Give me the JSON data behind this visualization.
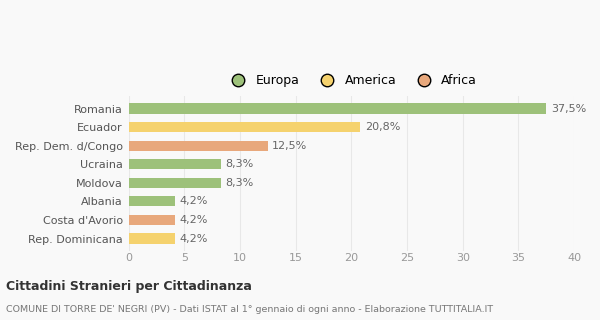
{
  "categories": [
    "Rep. Dominicana",
    "Costa d'Avorio",
    "Albania",
    "Moldova",
    "Ucraina",
    "Rep. Dem. d/Congo",
    "Ecuador",
    "Romania"
  ],
  "values": [
    4.2,
    4.2,
    4.2,
    8.3,
    8.3,
    12.5,
    20.8,
    37.5
  ],
  "labels": [
    "4,2%",
    "4,2%",
    "4,2%",
    "8,3%",
    "8,3%",
    "12,5%",
    "20,8%",
    "37,5%"
  ],
  "colors": [
    "#f5d26e",
    "#e8a87c",
    "#9dc17a",
    "#9dc17a",
    "#9dc17a",
    "#e8a87c",
    "#f5d26e",
    "#9dc17a"
  ],
  "legend": [
    {
      "label": "Europa",
      "color": "#9dc17a"
    },
    {
      "label": "America",
      "color": "#f5d26e"
    },
    {
      "label": "Africa",
      "color": "#e8a87c"
    }
  ],
  "xlim": [
    0,
    40
  ],
  "xticks": [
    0,
    5,
    10,
    15,
    20,
    25,
    30,
    35,
    40
  ],
  "title_main": "Cittadini Stranieri per Cittadinanza",
  "title_sub": "COMUNE DI TORRE DE' NEGRI (PV) - Dati ISTAT al 1° gennaio di ogni anno - Elaborazione TUTTITALIA.IT",
  "background_color": "#f9f9f9",
  "grid_color": "#e8e8e8",
  "bar_height": 0.55,
  "label_fontsize": 8,
  "tick_fontsize": 8,
  "legend_fontsize": 9
}
